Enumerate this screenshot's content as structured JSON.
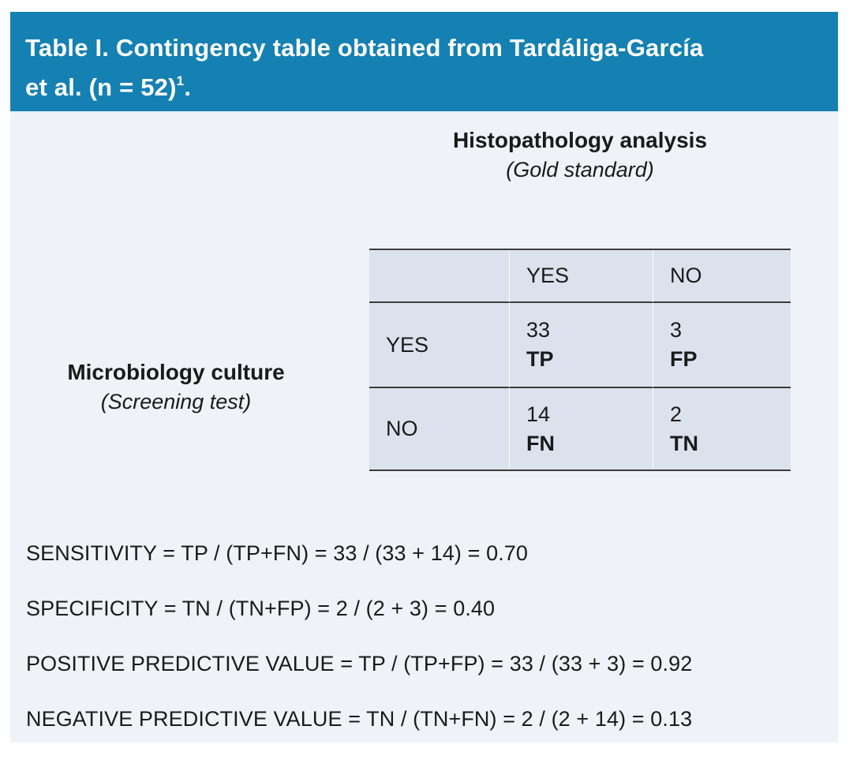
{
  "header": {
    "line1": "Table I. Contingency table obtained from Tardáliga-García",
    "line2_text": "et al. (n = 52)",
    "line2_sup": "1",
    "line2_end": "."
  },
  "column_group": {
    "title": "Histopathology analysis",
    "subtitle": "(Gold standard)"
  },
  "row_group": {
    "title": "Microbiology culture",
    "subtitle": "(Screening test)"
  },
  "table": {
    "column_headers": [
      "YES",
      "NO"
    ],
    "rows": [
      {
        "label": "YES",
        "cells": [
          {
            "value": "33",
            "tag": "TP"
          },
          {
            "value": "3",
            "tag": "FP"
          }
        ]
      },
      {
        "label": "NO",
        "cells": [
          {
            "value": "14",
            "tag": "FN"
          },
          {
            "value": "2",
            "tag": "TN"
          }
        ]
      }
    ]
  },
  "formulas": [
    "SENSITIVITY = TP / (TP+FN) = 33 / (33 + 14) = 0.70",
    "SPECIFICITY = TN / (TN+FP) = 2 / (2 + 3) = 0.40",
    "POSITIVE PREDICTIVE VALUE = TP / (TP+FP) = 33 / (33 + 3) = 0.92",
    "NEGATIVE PREDICTIVE VALUE = TN / (TN+FN) = 2 / (2 + 14) = 0.13"
  ],
  "colors": {
    "header_bg": "#1580B2",
    "panel_bg": "#EFF2F7",
    "table_bg": "#DCE2ED",
    "line": "#3B3B3B",
    "body_text": "#1A1A1A",
    "title_text": "#FFFFFF"
  },
  "chart_data": {
    "type": "table",
    "title": "Table I. Contingency table obtained from Tardáliga-García et al. (n = 52)1.",
    "column_variable": "Histopathology analysis (Gold standard)",
    "row_variable": "Microbiology culture (Screening test)",
    "columns": [
      "YES",
      "NO"
    ],
    "rows": [
      {
        "label": "YES",
        "values": [
          33,
          3
        ],
        "tags": [
          "TP",
          "FP"
        ]
      },
      {
        "label": "NO",
        "values": [
          14,
          2
        ],
        "tags": [
          "FN",
          "TN"
        ]
      }
    ],
    "n": 52,
    "derived_metrics": {
      "sensitivity": 0.7,
      "specificity": 0.4,
      "positive_predictive_value": 0.92,
      "negative_predictive_value": 0.13
    }
  }
}
